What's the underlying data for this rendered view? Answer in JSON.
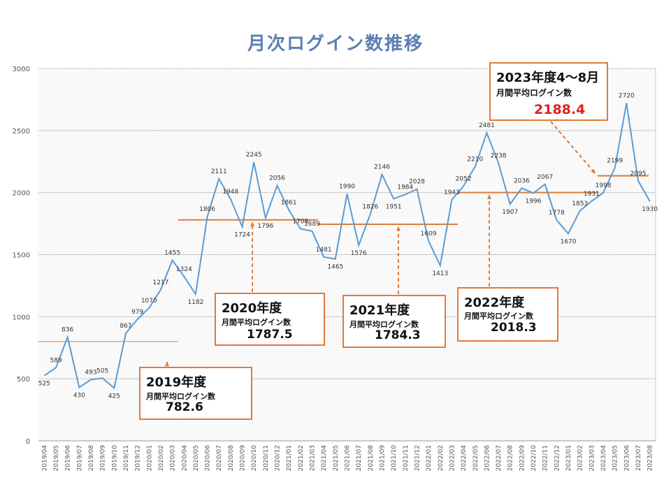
{
  "chart_data": {
    "type": "line",
    "title": "月次ログイン数推移",
    "ylim": [
      0,
      3000
    ],
    "yticks": [
      0,
      500,
      1000,
      1500,
      2000,
      2500,
      3000
    ],
    "grid": true,
    "series_color": "#5b9bd5",
    "avg_color": "#e07b39",
    "categories": [
      "2019/04",
      "2019/05",
      "2019/06",
      "2019/07",
      "2019/08",
      "2019/09",
      "2019/10",
      "2019/11",
      "2019/12",
      "2020/01",
      "2020/02",
      "2020/03",
      "2020/04",
      "2020/05",
      "2020/06",
      "2020/07",
      "2020/08",
      "2020/09",
      "2020/10",
      "2020/11",
      "2020/12",
      "2021/01",
      "2021/02",
      "2021/03",
      "2021/04",
      "2021/05",
      "2021/06",
      "2021/07",
      "2021/08",
      "2021/09",
      "2021/10",
      "2021/11",
      "2021/12",
      "2022/01",
      "2022/02",
      "2022/03",
      "2022/04",
      "2022/05",
      "2022/06",
      "2022/07",
      "2022/08",
      "2022/09",
      "2022/10",
      "2022/11",
      "2022/12",
      "2023/01",
      "2023/02",
      "2023/03",
      "2023/04",
      "2023/05",
      "2023/06",
      "2023/07",
      "2023/08"
    ],
    "values": [
      525,
      589,
      836,
      430,
      493,
      505,
      425,
      867,
      979,
      1070,
      1217,
      1455,
      1324,
      1182,
      1806,
      2111,
      1948,
      1724,
      2245,
      1796,
      2056,
      1861,
      1708,
      1689,
      1481,
      1465,
      1990,
      1576,
      1826,
      2146,
      1951,
      1984,
      2028,
      1609,
      1413,
      1943,
      2052,
      2210,
      2481,
      2238,
      1907,
      2036,
      1996,
      2067,
      1778,
      1670,
      1853,
      1931,
      1998,
      2199,
      2720,
      2095,
      1930
    ],
    "averages": [
      {
        "label": "2019年度",
        "sub": "月間平均ログイン数",
        "value": "782.6",
        "level": 800
      },
      {
        "label": "2020年度",
        "sub": "月間平均ログイン数",
        "value": "1787.5",
        "level": 1780
      },
      {
        "label": "2021年度",
        "sub": "月間平均ログイン数",
        "value": "1784.3",
        "level": 1745
      },
      {
        "label": "2022年度",
        "sub": "月間平均ログイン数",
        "value": "2018.3",
        "level": 2000
      },
      {
        "label": "2023年度4～8月",
        "sub": "月間平均ログイン数",
        "value": "2188.4",
        "level": 2135,
        "value_color": "#e02020"
      }
    ]
  }
}
